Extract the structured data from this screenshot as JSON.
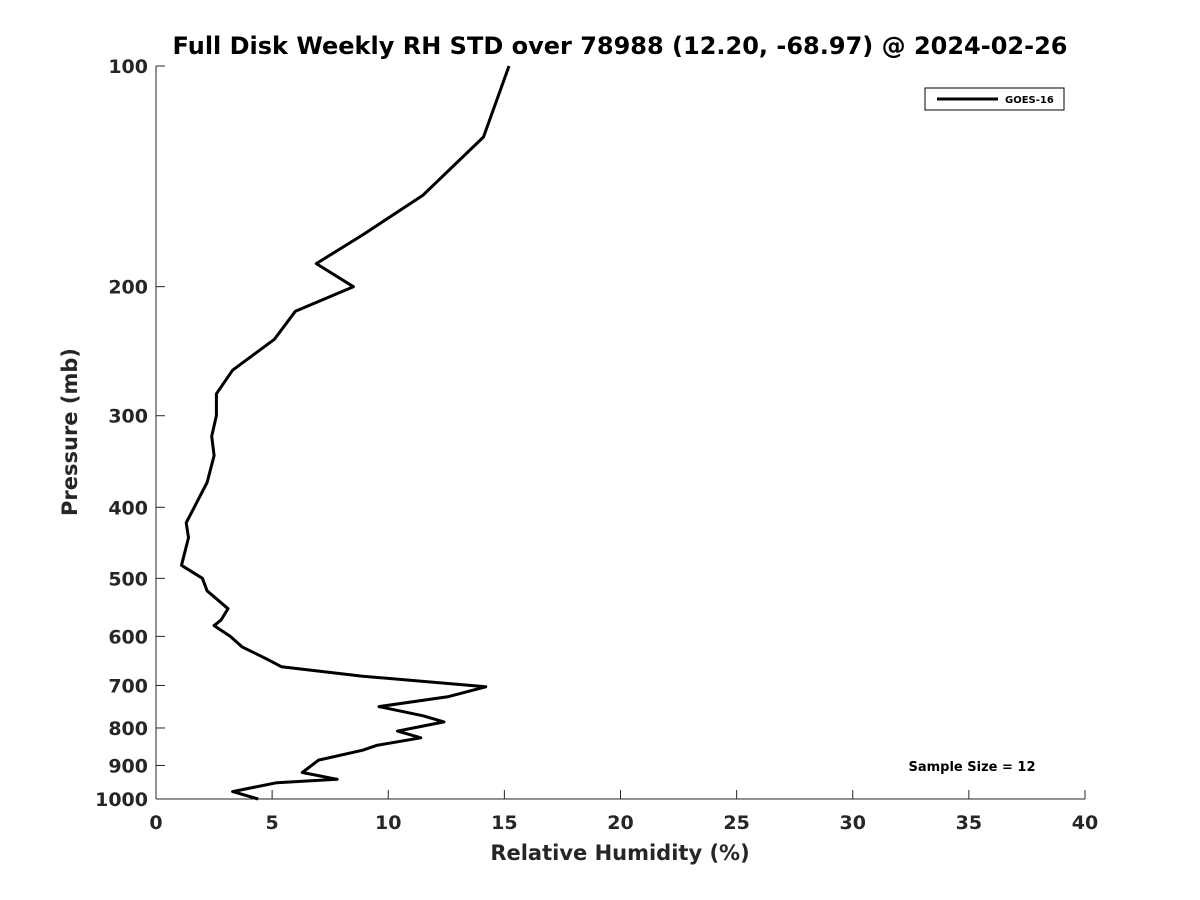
{
  "chart_data": {
    "type": "line",
    "title": "Full Disk Weekly RH STD over 78988 (12.20, -68.97) @ 2024-02-26",
    "xlabel": "Relative Humidity (%)",
    "ylabel": "Pressure (mb)",
    "xlim": [
      0,
      40
    ],
    "ylim": [
      100,
      1000
    ],
    "y_scale": "log",
    "y_inverted": true,
    "x_ticks": [
      0,
      5,
      10,
      15,
      20,
      25,
      30,
      35,
      40
    ],
    "y_ticks": [
      100,
      200,
      300,
      400,
      500,
      600,
      700,
      800,
      900,
      1000
    ],
    "grid": false,
    "legend_position": "top-right",
    "series": [
      {
        "name": "GOES-16",
        "color": "#000000",
        "points": [
          [
            15.2,
            100
          ],
          [
            14.1,
            125
          ],
          [
            11.5,
            150
          ],
          [
            8.9,
            170
          ],
          [
            6.9,
            186
          ],
          [
            8.5,
            200
          ],
          [
            6.0,
            216
          ],
          [
            5.1,
            236
          ],
          [
            3.3,
            260
          ],
          [
            2.6,
            280
          ],
          [
            2.6,
            300
          ],
          [
            2.4,
            320
          ],
          [
            2.5,
            340
          ],
          [
            2.2,
            370
          ],
          [
            1.3,
            420
          ],
          [
            1.4,
            440
          ],
          [
            1.1,
            480
          ],
          [
            2.0,
            500
          ],
          [
            2.2,
            520
          ],
          [
            3.1,
            550
          ],
          [
            2.8,
            570
          ],
          [
            2.5,
            580
          ],
          [
            3.2,
            600
          ],
          [
            3.7,
            620
          ],
          [
            4.8,
            645
          ],
          [
            5.4,
            660
          ],
          [
            8.9,
            680
          ],
          [
            14.2,
            703
          ],
          [
            12.6,
            725
          ],
          [
            9.6,
            748
          ],
          [
            11.5,
            770
          ],
          [
            12.4,
            785
          ],
          [
            10.4,
            808
          ],
          [
            11.4,
            825
          ],
          [
            9.5,
            845
          ],
          [
            8.9,
            858
          ],
          [
            7.0,
            885
          ],
          [
            6.3,
            920
          ],
          [
            7.8,
            940
          ],
          [
            5.2,
            950
          ],
          [
            3.3,
            977
          ],
          [
            4.4,
            1000
          ]
        ]
      }
    ],
    "annotations": [
      "Sample Size = 12"
    ]
  }
}
